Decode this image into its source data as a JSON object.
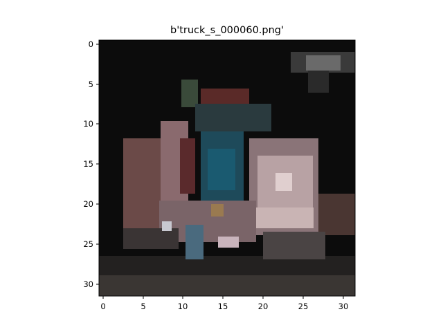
{
  "figure": {
    "title": "b'truck_s_000060.png'"
  },
  "chart_data": {
    "type": "heatmap",
    "title": "b'truck_s_000060.png'",
    "xlabel": "",
    "ylabel": "",
    "xlim": [
      -0.5,
      31.5
    ],
    "ylim": [
      31.5,
      -0.5
    ],
    "x_ticks": [
      0,
      5,
      10,
      15,
      20,
      25,
      30
    ],
    "y_ticks": [
      0,
      5,
      10,
      15,
      20,
      25,
      30
    ],
    "x_tick_labels": [
      "0",
      "5",
      "10",
      "15",
      "20",
      "25",
      "30"
    ],
    "y_tick_labels": [
      "0",
      "5",
      "10",
      "15",
      "20",
      "25",
      "30"
    ],
    "grid": false,
    "image_size": [
      32,
      32
    ],
    "colors": {
      "background": "#0c0c0c",
      "dark_red": "#5a2a28",
      "teal": "#1e4a5a",
      "light_pink": "#c9b4b4",
      "ground": "#2a2826",
      "gray": "#6e6e6e"
    }
  }
}
